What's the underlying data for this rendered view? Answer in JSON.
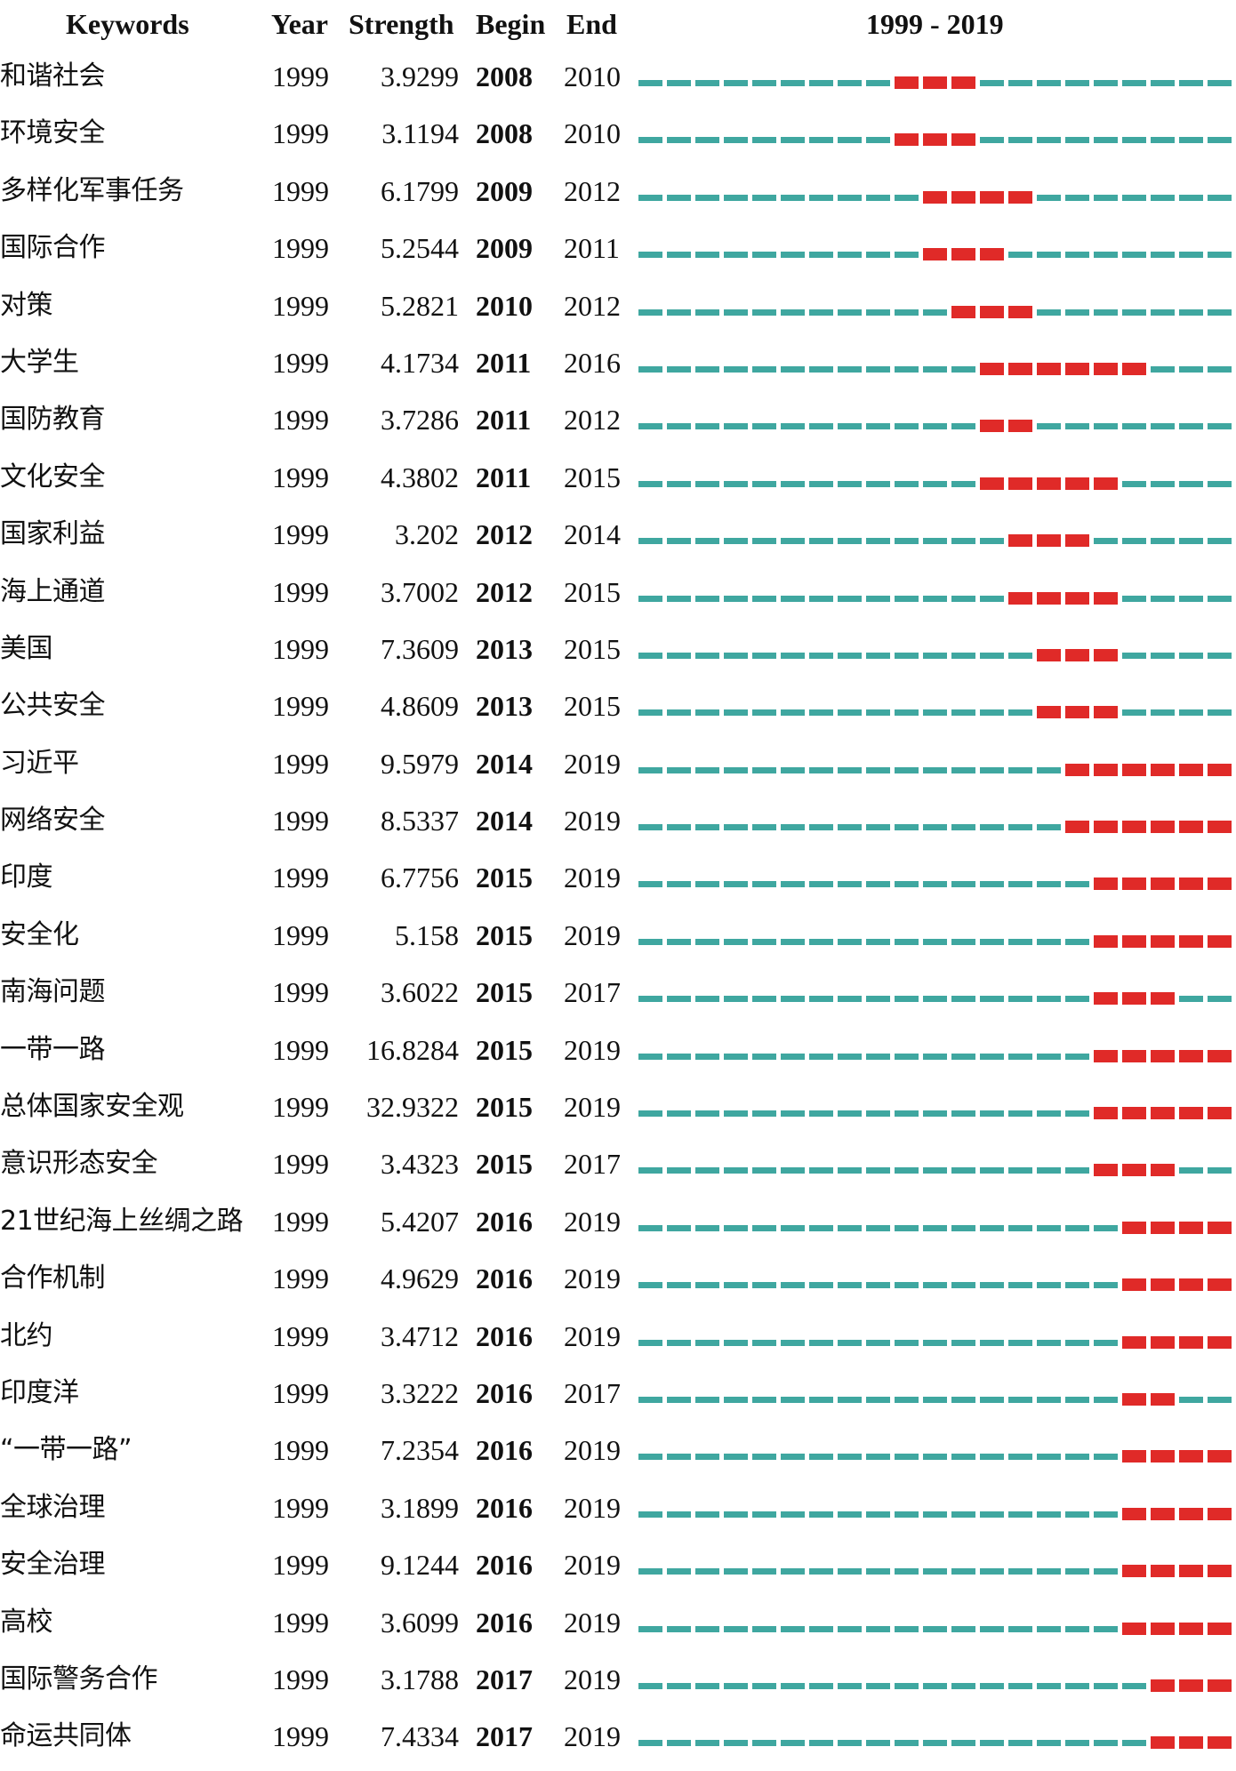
{
  "chart_data": {
    "type": "table",
    "columns": [
      "Keywords",
      "Year",
      "Strength",
      "Begin",
      "End",
      "1999 - 2019"
    ],
    "timeline": {
      "start": 1999,
      "end": 2019,
      "colors": {
        "base": "#3fa7a0",
        "burst": "#e02a28"
      }
    },
    "rows": [
      {
        "keyword": "和谐社会",
        "year": "1999",
        "strength": "3.9299",
        "begin": "2008",
        "end": "2010"
      },
      {
        "keyword": "环境安全",
        "year": "1999",
        "strength": "3.1194",
        "begin": "2008",
        "end": "2010"
      },
      {
        "keyword": "多样化军事任务",
        "year": "1999",
        "strength": "6.1799",
        "begin": "2009",
        "end": "2012"
      },
      {
        "keyword": "国际合作",
        "year": "1999",
        "strength": "5.2544",
        "begin": "2009",
        "end": "2011"
      },
      {
        "keyword": "对策",
        "year": "1999",
        "strength": "5.2821",
        "begin": "2010",
        "end": "2012"
      },
      {
        "keyword": "大学生",
        "year": "1999",
        "strength": "4.1734",
        "begin": "2011",
        "end": "2016"
      },
      {
        "keyword": "国防教育",
        "year": "1999",
        "strength": "3.7286",
        "begin": "2011",
        "end": "2012"
      },
      {
        "keyword": "文化安全",
        "year": "1999",
        "strength": "4.3802",
        "begin": "2011",
        "end": "2015"
      },
      {
        "keyword": "国家利益",
        "year": "1999",
        "strength": "3.202",
        "begin": "2012",
        "end": "2014"
      },
      {
        "keyword": "海上通道",
        "year": "1999",
        "strength": "3.7002",
        "begin": "2012",
        "end": "2015"
      },
      {
        "keyword": "美国",
        "year": "1999",
        "strength": "7.3609",
        "begin": "2013",
        "end": "2015"
      },
      {
        "keyword": "公共安全",
        "year": "1999",
        "strength": "4.8609",
        "begin": "2013",
        "end": "2015"
      },
      {
        "keyword": "习近平",
        "year": "1999",
        "strength": "9.5979",
        "begin": "2014",
        "end": "2019"
      },
      {
        "keyword": "网络安全",
        "year": "1999",
        "strength": "8.5337",
        "begin": "2014",
        "end": "2019"
      },
      {
        "keyword": "印度",
        "year": "1999",
        "strength": "6.7756",
        "begin": "2015",
        "end": "2019"
      },
      {
        "keyword": "安全化",
        "year": "1999",
        "strength": "5.158",
        "begin": "2015",
        "end": "2019"
      },
      {
        "keyword": "南海问题",
        "year": "1999",
        "strength": "3.6022",
        "begin": "2015",
        "end": "2017"
      },
      {
        "keyword": "一带一路",
        "year": "1999",
        "strength": "16.8284",
        "begin": "2015",
        "end": "2019"
      },
      {
        "keyword": "总体国家安全观",
        "year": "1999",
        "strength": "32.9322",
        "begin": "2015",
        "end": "2019"
      },
      {
        "keyword": "意识形态安全",
        "year": "1999",
        "strength": "3.4323",
        "begin": "2015",
        "end": "2017"
      },
      {
        "keyword": "21世纪海上丝绸之路",
        "year": "1999",
        "strength": "5.4207",
        "begin": "2016",
        "end": "2019"
      },
      {
        "keyword": "合作机制",
        "year": "1999",
        "strength": "4.9629",
        "begin": "2016",
        "end": "2019"
      },
      {
        "keyword": "北约",
        "year": "1999",
        "strength": "3.4712",
        "begin": "2016",
        "end": "2019"
      },
      {
        "keyword": "印度洋",
        "year": "1999",
        "strength": "3.3222",
        "begin": "2016",
        "end": "2017"
      },
      {
        "keyword": "“一带一路”",
        "year": "1999",
        "strength": "7.2354",
        "begin": "2016",
        "end": "2019"
      },
      {
        "keyword": "全球治理",
        "year": "1999",
        "strength": "3.1899",
        "begin": "2016",
        "end": "2019"
      },
      {
        "keyword": "安全治理",
        "year": "1999",
        "strength": "9.1244",
        "begin": "2016",
        "end": "2019"
      },
      {
        "keyword": "高校",
        "year": "1999",
        "strength": "3.6099",
        "begin": "2016",
        "end": "2019"
      },
      {
        "keyword": "国际警务合作",
        "year": "1999",
        "strength": "3.1788",
        "begin": "2017",
        "end": "2019"
      },
      {
        "keyword": "命运共同体",
        "year": "1999",
        "strength": "7.4334",
        "begin": "2017",
        "end": "2019"
      }
    ]
  }
}
